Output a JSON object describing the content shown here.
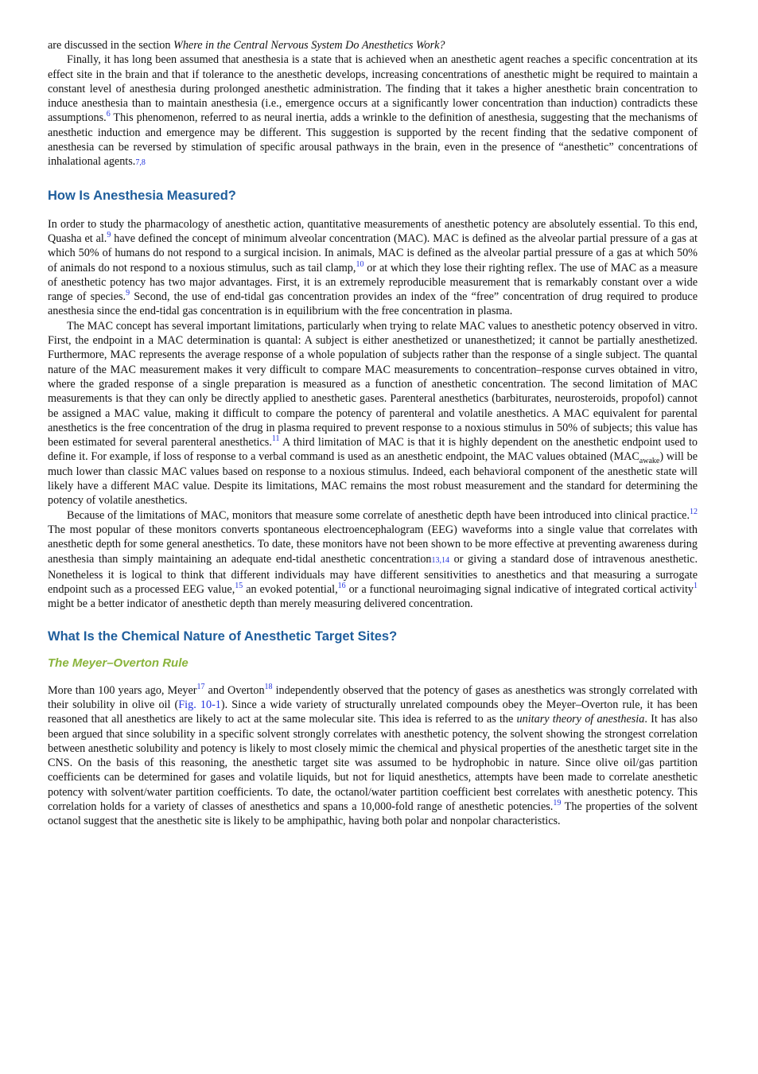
{
  "p1": [
    "are discussed in the section ",
    "Where in the Central Nervous System Do Anesthetics Work?"
  ],
  "p2": [
    "Finally, it has long been assumed that anesthesia is a state that is achieved when an anesthetic agent reaches a specific concentration at its effect site in the brain and that if tolerance to the anesthetic develops, increasing concentrations of anesthetic might be required to maintain a constant level of anesthesia during prolonged anesthetic administration. The finding that it takes a higher anesthetic brain concentration to induce anesthesia than to maintain anesthesia (i.e., emergence occurs at a significantly lower concentration than induction) contradicts these assumptions.",
    "6",
    " This phenomenon, referred to as neural inertia, adds a wrinkle to the definition of anesthesia, suggesting that the mechanisms of anesthetic induction and emergence may be different. This suggestion is supported by the recent finding that the sedative component of anesthesia can be reversed by stimulation of specific arousal pathways in the brain, even in the presence of “anesthetic” concentrations of inhalational agents.",
    "7,8"
  ],
  "heading1": "How Is Anesthesia Measured?",
  "p3": [
    "In order to study the pharmacology of anesthetic action, quantitative measurements of anesthetic potency are absolutely essential. To this end, Quasha et al.",
    "9",
    " have defined the concept of minimum alveolar concentration (MAC). MAC is defined as the alveolar partial pressure of a gas at which 50% of humans do not respond to a surgical incision. In animals, MAC is defined as the alveolar partial pressure of a gas at which 50% of animals do not respond to a noxious stimulus, such as tail clamp,",
    "10",
    " or at which they lose their righting reflex. The use of MAC as a measure of anesthetic potency has two major advantages. First, it is an extremely reproducible measurement that is remarkably constant over a wide range of species.",
    "9",
    " Second, the use of end-tidal gas concentration provides an index of the “free” concentration of drug required to produce anesthesia since the end-tidal gas concentration is in equilibrium with the free concentration in plasma."
  ],
  "p4": [
    "The MAC concept has several important limitations, particularly when trying to relate MAC values to anesthetic potency observed in vitro. First, the endpoint in a MAC determination is quantal: A subject is either anesthetized or unanesthetized; it cannot be partially anesthetized. Furthermore, MAC represents the average response of a whole population of subjects rather than the response of a single subject. The quantal nature of the MAC measurement makes it very difficult to compare MAC measurements to concentration–response curves obtained in vitro, where the graded response of a single preparation is measured as a function of anesthetic concentration. The second limitation of MAC measurements is that they can only be directly applied to anesthetic gases. Parenteral anesthetics (barbiturates, neurosteroids, propofol) cannot be assigned a MAC value, making it difficult to compare the potency of parenteral and volatile anesthetics. A MAC equivalent for parental anesthetics is the free concentration of the drug in plasma required to prevent response to a noxious stimulus in 50% of subjects; this value has been estimated for several parenteral anesthetics.",
    "11",
    " A third limitation of MAC is that it is highly dependent on the anesthetic endpoint used to define it. For example, if loss of response to a verbal command is used as an anesthetic endpoint, the MAC values obtained (MAC",
    "awake",
    ") will be much lower than classic MAC values based on response to a noxious stimulus. Indeed, each behavioral component of the anesthetic state will likely have a different MAC value. Despite its limitations, MAC remains the most robust measurement and the standard for determining the potency of volatile anesthetics."
  ],
  "p5": [
    "Because of the limitations of MAC, monitors that measure some correlate of anesthetic depth have been introduced into clinical practice.",
    "12",
    " The most popular of these monitors converts spontaneous electroencephalogram (EEG) waveforms into a single value that correlates with anesthetic depth for some general anesthetics. To date, these monitors have not been shown to be more effective at preventing awareness during anesthesia than simply maintaining an adequate end-tidal anesthetic concentration",
    "13,14",
    " or giving a standard dose of intravenous anesthetic. Nonetheless it is logical to think that different individuals may have different sensitivities to anesthetics and that measuring a surrogate endpoint such as a processed EEG value,",
    "15",
    " an evoked potential,",
    "16",
    " or a functional neuroimaging signal indicative of integrated cortical activity",
    "1",
    " might be a better indicator of anesthetic depth than merely measuring delivered concentration."
  ],
  "heading2": "What Is the Chemical Nature of Anesthetic Target Sites?",
  "subheading": "The Meyer–Overton Rule",
  "p6": [
    "More than 100 years ago, Meyer",
    "17",
    " and Overton",
    "18",
    " independently observed that the potency of gases as anesthetics was strongly correlated with their solubility in olive oil (",
    "Fig. 10-1",
    "). Since a wide variety of structurally unrelated compounds obey the Meyer–Overton rule, it has been reasoned that all anesthetics are likely to act at the same molecular site. This idea is referred to as the ",
    "unitary theory of anesthesia",
    ". It has also been argued that since solubility in a specific solvent strongly correlates with anesthetic potency, the solvent showing the strongest correlation between anesthetic solubility and potency is likely to most closely mimic the chemical and physical properties of the anesthetic target site in the CNS. On the basis of this reasoning, the anesthetic target site was assumed to be hydrophobic in nature. Since olive oil/gas partition coefficients can be determined for gases and volatile liquids, but not for liquid anesthetics, attempts have been made to correlate anesthetic potency with solvent/water partition coefficients. To date, the octanol/water partition coefficient best correlates with anesthetic potency. This correlation holds for a variety of classes of anesthetics and spans a 10,000-fold range of anesthetic potencies.",
    "19",
    " The properties of the solvent octanol suggest that the anesthetic site is likely to be amphipathic, having both polar and nonpolar characteristics."
  ]
}
